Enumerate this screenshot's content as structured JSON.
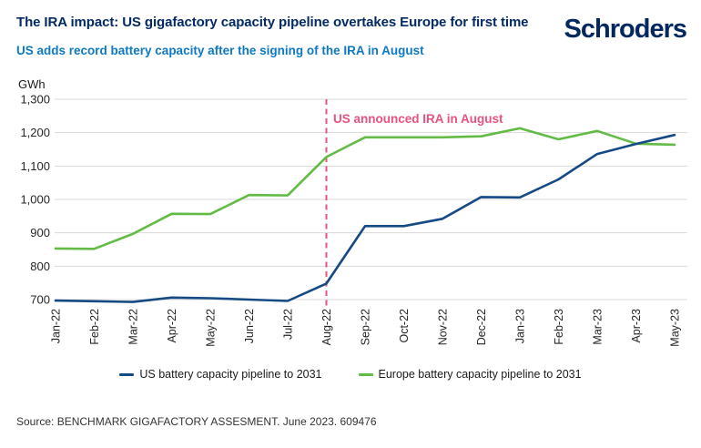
{
  "header": {
    "title": "The IRA impact: US gigafactory capacity pipeline overtakes Europe for first time",
    "subtitle": "US adds record battery capacity after the signing of the IRA in August",
    "logo": "Schroders"
  },
  "chart_data": {
    "type": "line",
    "unit_label": "GWh",
    "categories": [
      "Jan-22",
      "Feb-22",
      "Mar-22",
      "Apr-22",
      "May-22",
      "Jun-22",
      "Jul-22",
      "Aug-22",
      "Sep-22",
      "Oct-22",
      "Nov-22",
      "Dec-22",
      "Jan-23",
      "Feb-23",
      "Mar-23",
      "Apr-23",
      "May-23"
    ],
    "series": [
      {
        "name": "US battery capacity pipeline to 2031",
        "color": "#164a84",
        "values": [
          697,
          695,
          693,
          706,
          704,
          700,
          696,
          748,
          920,
          920,
          942,
          1007,
          1006,
          1060,
          1136,
          1166,
          1193
        ]
      },
      {
        "name": "Europe battery capacity pipeline to 2031",
        "color": "#63bb46",
        "values": [
          853,
          852,
          897,
          957,
          956,
          1013,
          1012,
          1127,
          1186,
          1186,
          1186,
          1189,
          1213,
          1180,
          1205,
          1167,
          1164
        ]
      }
    ],
    "annotation": {
      "label": "US announced IRA in August",
      "at_category": "Aug-22",
      "color": "#e9517e",
      "line_style": "dashed"
    },
    "ylim": [
      700,
      1300
    ],
    "ytick_step": 100,
    "yticks": [
      "700",
      "800",
      "900",
      "1,000",
      "1,100",
      "1,200",
      "1,300"
    ],
    "grid": true,
    "gridline_color": "#d9d9d9",
    "tick_label_color": "#262626",
    "legend_position": "bottom"
  },
  "footer": {
    "source": "Source: BENCHMARK GIGAFACTORY ASSESMENT. June 2023. 609476"
  }
}
